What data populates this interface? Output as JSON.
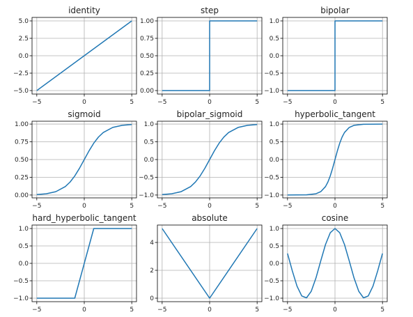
{
  "chart_data": [
    {
      "type": "line",
      "title": "identity",
      "xlim": [
        -5.5,
        5.5
      ],
      "ylim": [
        -5.5,
        5.5
      ],
      "xticks": [
        -5,
        0,
        5
      ],
      "yticks": [
        -5.0,
        -2.5,
        0.0,
        2.5,
        5.0
      ],
      "ytick_labels": [
        "−5.0",
        "−2.5",
        "0.0",
        "2.5",
        "5.0"
      ],
      "grid": true,
      "series": [
        {
          "x": [
            -5,
            5
          ],
          "y": [
            -5,
            5
          ]
        }
      ]
    },
    {
      "type": "line",
      "title": "step",
      "xlim": [
        -5.5,
        5.5
      ],
      "ylim": [
        -0.05,
        1.05
      ],
      "xticks": [
        -5,
        0,
        5
      ],
      "yticks": [
        0.0,
        0.25,
        0.5,
        0.75,
        1.0
      ],
      "ytick_labels": [
        "0.00",
        "0.25",
        "0.50",
        "0.75",
        "1.00"
      ],
      "grid": true,
      "series": [
        {
          "x": [
            -5,
            0,
            0,
            5
          ],
          "y": [
            0,
            0,
            1,
            1
          ]
        }
      ]
    },
    {
      "type": "line",
      "title": "bipolar",
      "xlim": [
        -5.5,
        5.5
      ],
      "ylim": [
        -1.1,
        1.1
      ],
      "xticks": [
        -5,
        0,
        5
      ],
      "yticks": [
        -1.0,
        -0.5,
        0.0,
        0.5,
        1.0
      ],
      "ytick_labels": [
        "−1.0",
        "−0.5",
        "0.0",
        "0.5",
        "1.0"
      ],
      "grid": true,
      "series": [
        {
          "x": [
            -5,
            0,
            0,
            5
          ],
          "y": [
            -1,
            -1,
            1,
            1
          ]
        }
      ]
    },
    {
      "type": "line",
      "title": "sigmoid",
      "xlim": [
        -5.5,
        5.5
      ],
      "ylim": [
        -0.04,
        1.04
      ],
      "xticks": [
        -5,
        0,
        5
      ],
      "yticks": [
        0.0,
        0.25,
        0.5,
        0.75,
        1.0
      ],
      "ytick_labels": [
        "0.00",
        "0.25",
        "0.50",
        "0.75",
        "1.00"
      ],
      "grid": true,
      "series": [
        {
          "x": [
            -5,
            -4,
            -3,
            -2,
            -1.5,
            -1,
            -0.5,
            0,
            0.5,
            1,
            1.5,
            2,
            3,
            4,
            5
          ],
          "y": [
            0.007,
            0.018,
            0.047,
            0.119,
            0.182,
            0.269,
            0.378,
            0.5,
            0.622,
            0.731,
            0.818,
            0.881,
            0.953,
            0.982,
            0.993
          ]
        }
      ]
    },
    {
      "type": "line",
      "title": "bipolar_sigmoid",
      "xlim": [
        -5.5,
        5.5
      ],
      "ylim": [
        -1.08,
        1.08
      ],
      "xticks": [
        -5,
        0,
        5
      ],
      "yticks": [
        -1.0,
        -0.5,
        0.0,
        0.5,
        1.0
      ],
      "ytick_labels": [
        "−1.0",
        "−0.5",
        "0.0",
        "0.5",
        "1.0"
      ],
      "grid": true,
      "series": [
        {
          "x": [
            -5,
            -4,
            -3,
            -2,
            -1.5,
            -1,
            -0.5,
            0,
            0.5,
            1,
            1.5,
            2,
            3,
            4,
            5
          ],
          "y": [
            -0.987,
            -0.964,
            -0.905,
            -0.762,
            -0.635,
            -0.462,
            -0.245,
            0,
            0.245,
            0.462,
            0.635,
            0.762,
            0.905,
            0.964,
            0.987
          ]
        }
      ]
    },
    {
      "type": "line",
      "title": "hyperbolic_tangent",
      "xlim": [
        -5.5,
        5.5
      ],
      "ylim": [
        -1.08,
        1.08
      ],
      "xticks": [
        -5,
        0,
        5
      ],
      "yticks": [
        -1.0,
        -0.5,
        0.0,
        0.5,
        1.0
      ],
      "ytick_labels": [
        "−1.0",
        "−0.5",
        "0.0",
        "0.5",
        "1.0"
      ],
      "grid": true,
      "series": [
        {
          "x": [
            -5,
            -3,
            -2,
            -1.5,
            -1,
            -0.75,
            -0.5,
            -0.25,
            0,
            0.25,
            0.5,
            0.75,
            1,
            1.5,
            2,
            3,
            5
          ],
          "y": [
            -1.0,
            -0.995,
            -0.964,
            -0.905,
            -0.762,
            -0.635,
            -0.462,
            -0.245,
            0,
            0.245,
            0.462,
            0.635,
            0.762,
            0.905,
            0.964,
            0.995,
            1.0
          ]
        }
      ]
    },
    {
      "type": "line",
      "title": "hard_hyperbolic_tangent",
      "xlim": [
        -5.5,
        5.5
      ],
      "ylim": [
        -1.1,
        1.1
      ],
      "xticks": [
        -5,
        0,
        5
      ],
      "yticks": [
        -1.0,
        -0.5,
        0.0,
        0.5,
        1.0
      ],
      "ytick_labels": [
        "−1.0",
        "−0.5",
        "0.0",
        "0.5",
        "1.0"
      ],
      "grid": true,
      "series": [
        {
          "x": [
            -5,
            -1,
            1,
            5
          ],
          "y": [
            -1,
            -1,
            1,
            1
          ]
        }
      ]
    },
    {
      "type": "line",
      "title": "absolute",
      "xlim": [
        -5.5,
        5.5
      ],
      "ylim": [
        -0.25,
        5.25
      ],
      "xticks": [
        -5,
        0,
        5
      ],
      "yticks": [
        0,
        2,
        4
      ],
      "ytick_labels": [
        "0",
        "2",
        "4"
      ],
      "grid": true,
      "series": [
        {
          "x": [
            -5,
            0,
            5
          ],
          "y": [
            5,
            0,
            5
          ]
        }
      ]
    },
    {
      "type": "line",
      "title": "cosine",
      "xlim": [
        -5.5,
        5.5
      ],
      "ylim": [
        -1.1,
        1.1
      ],
      "xticks": [
        -5,
        0,
        5
      ],
      "yticks": [
        -1.0,
        -0.5,
        0.0,
        0.5,
        1.0
      ],
      "ytick_labels": [
        "−1.0",
        "−0.5",
        "0.0",
        "0.5",
        "1.0"
      ],
      "grid": true,
      "series": [
        {
          "x": [
            -5,
            -4.5,
            -4,
            -3.5,
            -3,
            -2.5,
            -2,
            -1.5,
            -1,
            -0.5,
            0,
            0.5,
            1,
            1.5,
            2,
            2.5,
            3,
            3.5,
            4,
            4.5,
            5
          ],
          "y": [
            0.284,
            -0.211,
            -0.654,
            -0.936,
            -0.99,
            -0.801,
            -0.416,
            0.071,
            0.54,
            0.878,
            1.0,
            0.878,
            0.54,
            0.071,
            -0.416,
            -0.801,
            -0.99,
            -0.936,
            -0.654,
            -0.211,
            0.284
          ]
        }
      ]
    }
  ],
  "colors": {
    "line": "#1f77b4",
    "grid": "#b0b0b0",
    "axes": "#000000",
    "text": "#222222"
  }
}
